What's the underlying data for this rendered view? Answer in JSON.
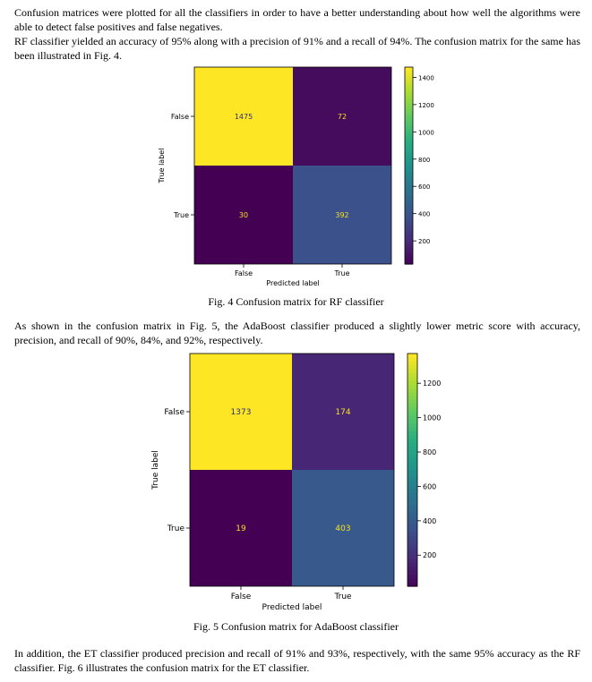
{
  "paragraphs": {
    "p1": "Confusion matrices were plotted for all the classifiers in order to have a better understanding about how well the algorithms were able to detect false positives and false negatives.",
    "p2": "RF classifier yielded an accuracy of 95% along with a precision of 91% and a recall of 94%. The confusion matrix for the same has been illustrated in Fig. 4.",
    "p3": "As shown in the confusion matrix in Fig. 5, the AdaBoost classifier produced a slightly lower metric score with accuracy, precision, and recall of 90%, 84%, and 92%, respectively.",
    "p4": "In addition, the ET classifier produced precision and recall of 91% and 93%, respectively, with the same 95% accuracy as the RF classifier. Fig. 6 illustrates the confusion matrix for the ET classifier."
  },
  "captions": {
    "fig4": "Fig. 4 Confusion matrix for RF classifier",
    "fig5": "Fig. 5 Confusion matrix for AdaBoost classifier"
  },
  "chart_data": [
    {
      "type": "heatmap",
      "title": "",
      "xlabel": "Predicted label",
      "ylabel": "True label",
      "categories_x": [
        "False",
        "True"
      ],
      "categories_y": [
        "False",
        "True"
      ],
      "values": [
        [
          1475,
          72
        ],
        [
          30,
          392
        ]
      ],
      "colormap": "viridis",
      "colorbar_ticks": [
        200,
        400,
        600,
        800,
        1000,
        1200,
        1400
      ],
      "colorbar_range": [
        30,
        1475
      ]
    },
    {
      "type": "heatmap",
      "title": "",
      "xlabel": "Predicted label",
      "ylabel": "True label",
      "categories_x": [
        "False",
        "True"
      ],
      "categories_y": [
        "False",
        "True"
      ],
      "values": [
        [
          1373,
          174
        ],
        [
          19,
          403
        ]
      ],
      "colormap": "viridis",
      "colorbar_ticks": [
        200,
        400,
        600,
        800,
        1000,
        1200
      ],
      "colorbar_range": [
        19,
        1373
      ]
    }
  ]
}
